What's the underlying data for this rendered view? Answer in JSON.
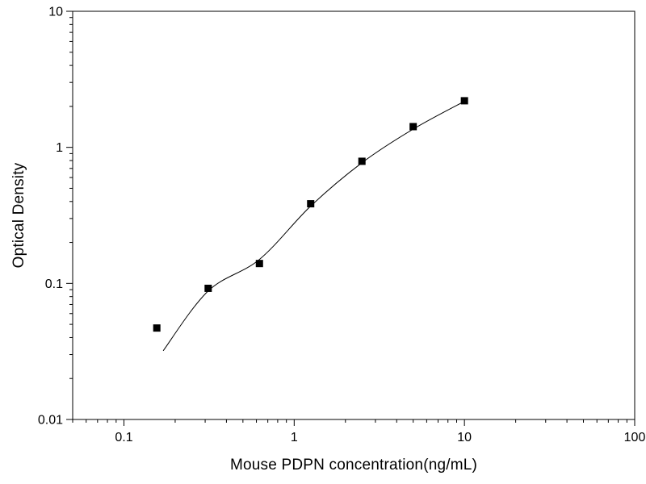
{
  "figure": {
    "background": "#ffffff",
    "axis_color": "#000000"
  },
  "chart_data": {
    "type": "scatter",
    "xlabel": "Mouse PDPN concentration(ng/mL)",
    "ylabel": "Optical Density",
    "x_scale": "log",
    "y_scale": "log",
    "xlim": [
      0.05,
      100
    ],
    "ylim": [
      0.01,
      10
    ],
    "x_ticks": [
      0.1,
      1,
      10,
      100
    ],
    "x_tick_labels": [
      "0.1",
      "1",
      "10",
      "100"
    ],
    "y_ticks": [
      0.01,
      0.1,
      1,
      10
    ],
    "y_tick_labels": [
      "0.01",
      "0.1",
      "1",
      "10"
    ],
    "grid": false,
    "legend": null,
    "series": [
      {
        "name": "standard-points",
        "marker": "filled-square",
        "marker_size": 9,
        "color": "#000000",
        "points": [
          {
            "x": 0.156,
            "y": 0.047
          },
          {
            "x": 0.3125,
            "y": 0.092
          },
          {
            "x": 0.625,
            "y": 0.14
          },
          {
            "x": 1.25,
            "y": 0.385
          },
          {
            "x": 2.5,
            "y": 0.79
          },
          {
            "x": 5,
            "y": 1.42
          },
          {
            "x": 10,
            "y": 2.2
          }
        ]
      }
    ],
    "fit_curve": {
      "name": "standard-curve-fit",
      "color": "#000000",
      "stroke_width": 1,
      "anchors": [
        {
          "x": 0.17,
          "y": 0.032
        },
        {
          "x": 0.3125,
          "y": 0.088
        },
        {
          "x": 0.625,
          "y": 0.15
        },
        {
          "x": 1.25,
          "y": 0.37
        },
        {
          "x": 2.5,
          "y": 0.77
        },
        {
          "x": 5,
          "y": 1.36
        },
        {
          "x": 10,
          "y": 2.18
        }
      ]
    }
  }
}
